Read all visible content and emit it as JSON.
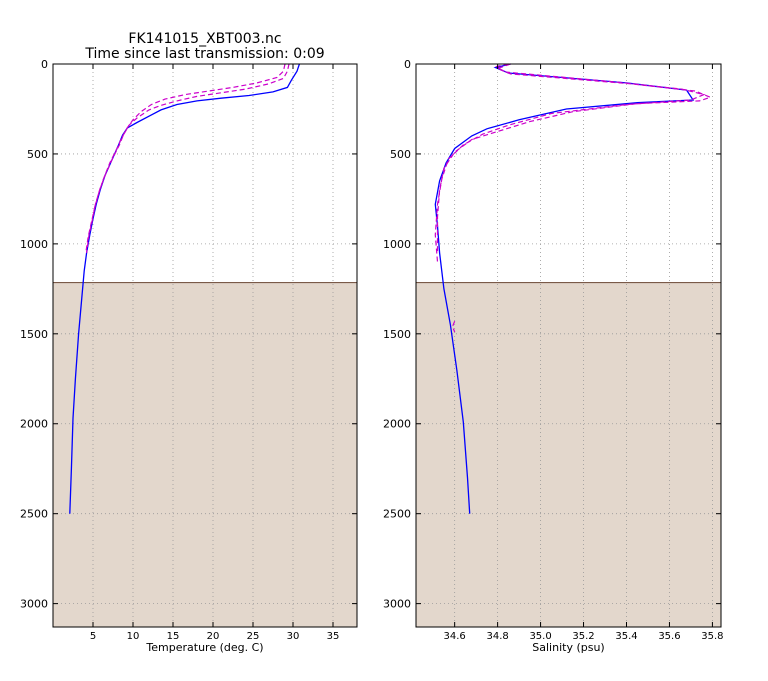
{
  "title_line1": "FK141015_XBT003.nc",
  "title_line2": "Time since last transmission: 0:09",
  "colors": {
    "background": "#ffffff",
    "below_depth_fill": "#e3d7cc",
    "below_depth_edge": "#7a5a48",
    "measured_line": "#0000ff",
    "reference_lines": "#cc00cc",
    "grid": "#999999"
  },
  "chart_data": [
    {
      "type": "line",
      "xlabel": "Temperature (deg. C)",
      "ylabel": "",
      "xlim": [
        0,
        38
      ],
      "ylim": [
        3130,
        0
      ],
      "y_inverted": true,
      "x_ticks": [
        5,
        10,
        15,
        20,
        25,
        30,
        35
      ],
      "y_ticks": [
        0,
        500,
        1000,
        1500,
        2000,
        2500,
        3000
      ],
      "grid": true,
      "shaded_below_depth": 1215,
      "series": [
        {
          "style": "solid",
          "color": "#0000ff",
          "points": [
            [
              30.8,
              0
            ],
            [
              30.5,
              40
            ],
            [
              29.8,
              90
            ],
            [
              29.3,
              130
            ],
            [
              27.5,
              155
            ],
            [
              24.5,
              175
            ],
            [
              21,
              190
            ],
            [
              18,
              205
            ],
            [
              15.5,
              225
            ],
            [
              13.5,
              255
            ],
            [
              12,
              290
            ],
            [
              10.5,
              325
            ],
            [
              9.3,
              355
            ],
            [
              8.7,
              395
            ],
            [
              8.2,
              450
            ],
            [
              7.3,
              540
            ],
            [
              6.5,
              620
            ],
            [
              5.9,
              700
            ],
            [
              5.4,
              780
            ],
            [
              5,
              860
            ],
            [
              4.6,
              950
            ],
            [
              4.2,
              1050
            ],
            [
              3.9,
              1150
            ],
            [
              3.6,
              1300
            ],
            [
              3.2,
              1500
            ],
            [
              2.8,
              1750
            ],
            [
              2.5,
              1970
            ],
            [
              2.3,
              2250
            ],
            [
              2.1,
              2500
            ]
          ]
        },
        {
          "style": "dashed",
          "color": "#cc00cc",
          "points": [
            [
              29.5,
              0
            ],
            [
              29.3,
              40
            ],
            [
              28.8,
              80
            ],
            [
              27,
              110
            ],
            [
              24,
              140
            ],
            [
              21,
              160
            ],
            [
              18,
              180
            ],
            [
              15.5,
              205
            ],
            [
              13.5,
              230
            ],
            [
              12,
              255
            ],
            [
              10.5,
              300
            ],
            [
              9.5,
              340
            ],
            [
              8.8,
              395
            ],
            [
              8.3,
              450
            ],
            [
              7.4,
              530
            ],
            [
              6.6,
              610
            ],
            [
              5.9,
              690
            ],
            [
              5.3,
              780
            ],
            [
              4.9,
              870
            ],
            [
              4.5,
              950
            ],
            [
              4.2,
              1050
            ]
          ]
        },
        {
          "style": "dashed",
          "color": "#cc00cc",
          "points": [
            [
              29,
              0
            ],
            [
              28.8,
              40
            ],
            [
              28,
              75
            ],
            [
              25.5,
              105
            ],
            [
              22.5,
              130
            ],
            [
              19.5,
              150
            ],
            [
              16.5,
              170
            ],
            [
              14,
              195
            ],
            [
              12.3,
              225
            ],
            [
              11,
              265
            ],
            [
              10,
              310
            ],
            [
              9.2,
              360
            ],
            [
              8.5,
              420
            ],
            [
              8,
              470
            ],
            [
              7.1,
              550
            ],
            [
              6.3,
              640
            ],
            [
              5.7,
              720
            ],
            [
              5.2,
              800
            ],
            [
              4.8,
              880
            ],
            [
              4.4,
              960
            ],
            [
              4.1,
              1050
            ]
          ]
        }
      ]
    },
    {
      "type": "line",
      "xlabel": "Salinity (psu)",
      "ylabel": "",
      "xlim": [
        34.42,
        35.84
      ],
      "ylim": [
        3130,
        0
      ],
      "y_inverted": true,
      "x_ticks": [
        34.6,
        34.8,
        35.0,
        35.2,
        35.4,
        35.6,
        35.8
      ],
      "y_ticks": [
        0,
        500,
        1000,
        1500,
        2000,
        2500,
        3000
      ],
      "grid": true,
      "shaded_below_depth": 1215,
      "series": [
        {
          "style": "solid",
          "color": "#0000ff",
          "points": [
            [
              34.86,
              0
            ],
            [
              34.79,
              20
            ],
            [
              34.85,
              50
            ],
            [
              35.4,
              105
            ],
            [
              35.68,
              145
            ],
            [
              35.71,
              200
            ],
            [
              35.45,
              215
            ],
            [
              35.12,
              250
            ],
            [
              34.9,
              310
            ],
            [
              34.75,
              360
            ],
            [
              34.68,
              400
            ],
            [
              34.6,
              470
            ],
            [
              34.56,
              550
            ],
            [
              34.53,
              650
            ],
            [
              34.51,
              780
            ],
            [
              34.52,
              900
            ],
            [
              34.53,
              1050
            ],
            [
              34.55,
              1250
            ],
            [
              34.58,
              1450
            ],
            [
              34.61,
              1700
            ],
            [
              34.64,
              1990
            ],
            [
              34.66,
              2300
            ],
            [
              34.67,
              2500
            ]
          ]
        },
        {
          "style": "dashed",
          "color": "#cc00cc",
          "points": [
            [
              34.86,
              0
            ],
            [
              34.8,
              25
            ],
            [
              34.86,
              55
            ],
            [
              35.42,
              110
            ],
            [
              35.72,
              150
            ],
            [
              35.79,
              185
            ],
            [
              35.74,
              205
            ],
            [
              35.45,
              220
            ],
            [
              35.15,
              265
            ],
            [
              34.95,
              320
            ],
            [
              34.8,
              375
            ],
            [
              34.68,
              420
            ],
            [
              34.6,
              490
            ],
            [
              34.55,
              580
            ],
            [
              34.53,
              700
            ],
            [
              34.52,
              850
            ],
            [
              34.52,
              1050
            ]
          ]
        },
        {
          "style": "dashed",
          "color": "#cc00cc",
          "points": [
            [
              34.85,
              0
            ],
            [
              34.79,
              15
            ],
            [
              34.84,
              45
            ],
            [
              35.35,
              100
            ],
            [
              35.66,
              140
            ],
            [
              35.76,
              170
            ],
            [
              35.7,
              200
            ],
            [
              35.4,
              225
            ],
            [
              35.05,
              275
            ],
            [
              34.85,
              340
            ],
            [
              34.73,
              390
            ],
            [
              34.64,
              450
            ],
            [
              34.57,
              530
            ],
            [
              34.54,
              640
            ],
            [
              34.52,
              780
            ],
            [
              34.51,
              950
            ],
            [
              34.52,
              1100
            ]
          ]
        },
        {
          "style": "dashed",
          "color": "#cc00cc",
          "points": [
            [
              34.6,
              1430
            ],
            [
              34.59,
              1460
            ],
            [
              34.6,
              1490
            ]
          ]
        }
      ]
    }
  ]
}
